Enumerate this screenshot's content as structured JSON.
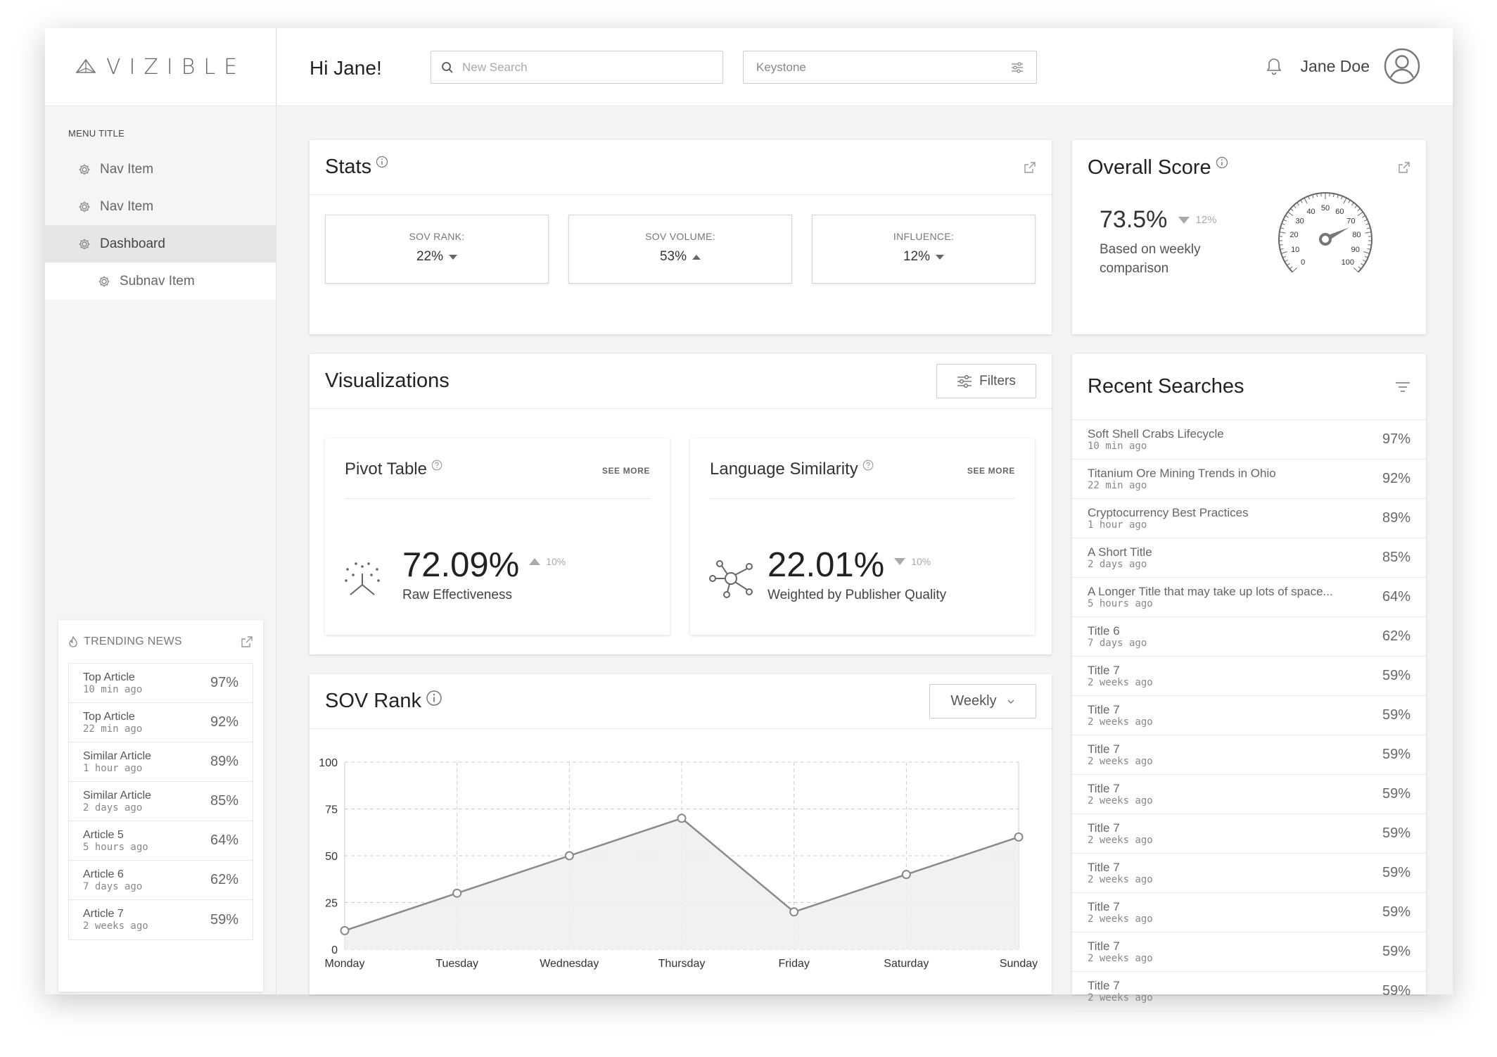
{
  "brand": {
    "logo_text": "VIZIBLE"
  },
  "sidebar": {
    "menu_title": "MENU TITLE",
    "items": [
      {
        "label": "Nav Item"
      },
      {
        "label": "Nav Item"
      },
      {
        "label": "Dashboard"
      },
      {
        "label": "Subnav Item"
      }
    ]
  },
  "trending": {
    "title": "TRENDING NEWS",
    "items": [
      {
        "title": "Top Article",
        "time": "10 min ago",
        "pct": "97%"
      },
      {
        "title": "Top Article",
        "time": "22 min ago",
        "pct": "92%"
      },
      {
        "title": "Similar Article",
        "time": "1 hour ago",
        "pct": "89%"
      },
      {
        "title": "Similar Article",
        "time": "2 days ago",
        "pct": "85%"
      },
      {
        "title": "Article 5",
        "time": "5 hours ago",
        "pct": "64%"
      },
      {
        "title": "Article 6",
        "time": "7 days ago",
        "pct": "62%"
      },
      {
        "title": "Article 7",
        "time": "2 weeks ago",
        "pct": "59%"
      }
    ]
  },
  "header": {
    "greeting": "Hi Jane!",
    "search_placeholder": "New Search",
    "keystone": "Keystone",
    "user_name": "Jane Doe"
  },
  "stats": {
    "title": "Stats",
    "boxes": [
      {
        "label": "SOV RANK:",
        "value": "22%"
      },
      {
        "label": "SOV VOLUME:",
        "value": "53%"
      },
      {
        "label": "INFLUENCE:",
        "value": "12%"
      }
    ]
  },
  "score": {
    "title": "Overall Score",
    "value": "73.5%",
    "change": "12%",
    "description": "Based on weekly comparison",
    "gauge_level": 73.5,
    "gauge_labels": [
      "0",
      "10",
      "20",
      "30",
      "40",
      "50",
      "60",
      "70",
      "80",
      "90",
      "100"
    ]
  },
  "visualizations": {
    "title": "Visualizations",
    "filters_label": "Filters",
    "pivot": {
      "title": "Pivot Table",
      "see_more": "SEE MORE",
      "value": "72.09%",
      "change": "10%",
      "label": "Raw Effectiveness"
    },
    "language": {
      "title": "Language Similarity",
      "see_more": "SEE MORE",
      "value": "22.01%",
      "change": "10%",
      "label": "Weighted by Publisher Quality"
    }
  },
  "sov_rank": {
    "title": "SOV Rank",
    "period": "Weekly"
  },
  "chart_data": {
    "type": "area",
    "title": "SOV Rank",
    "categories": [
      "Monday",
      "Tuesday",
      "Wednesday",
      "Thursday",
      "Friday",
      "Saturday",
      "Sunday"
    ],
    "values": [
      10,
      30,
      50,
      70,
      20,
      40,
      60
    ],
    "ylim": [
      0,
      100
    ],
    "yticks": [
      0,
      25,
      50,
      75,
      100
    ],
    "grid": true,
    "xlabel": "",
    "ylabel": ""
  },
  "recent": {
    "title": "Recent Searches",
    "items": [
      {
        "title": "Soft Shell Crabs Lifecycle",
        "time": "10 min ago",
        "pct": "97%"
      },
      {
        "title": "Titanium Ore Mining Trends in Ohio",
        "time": "22 min ago",
        "pct": "92%"
      },
      {
        "title": "Cryptocurrency Best Practices",
        "time": "1 hour ago",
        "pct": "89%"
      },
      {
        "title": "A Short Title",
        "time": "2 days ago",
        "pct": "85%"
      },
      {
        "title": "A Longer Title that may take up lots of space...",
        "time": "5 hours ago",
        "pct": "64%"
      },
      {
        "title": "Title 6",
        "time": "7 days ago",
        "pct": "62%"
      },
      {
        "title": "Title 7",
        "time": "2 weeks ago",
        "pct": "59%"
      },
      {
        "title": "Title 7",
        "time": "2 weeks ago",
        "pct": "59%"
      },
      {
        "title": "Title 7",
        "time": "2 weeks ago",
        "pct": "59%"
      },
      {
        "title": "Title 7",
        "time": "2 weeks ago",
        "pct": "59%"
      },
      {
        "title": "Title 7",
        "time": "2 weeks ago",
        "pct": "59%"
      },
      {
        "title": "Title 7",
        "time": "2 weeks ago",
        "pct": "59%"
      },
      {
        "title": "Title 7",
        "time": "2 weeks ago",
        "pct": "59%"
      },
      {
        "title": "Title 7",
        "time": "2 weeks ago",
        "pct": "59%"
      },
      {
        "title": "Title 7",
        "time": "2 weeks ago",
        "pct": "59%"
      }
    ]
  },
  "colors": {
    "accent": "#666666",
    "line": "#8a8a8a",
    "area": "#f0f0f0",
    "grid": "#cccccc"
  }
}
